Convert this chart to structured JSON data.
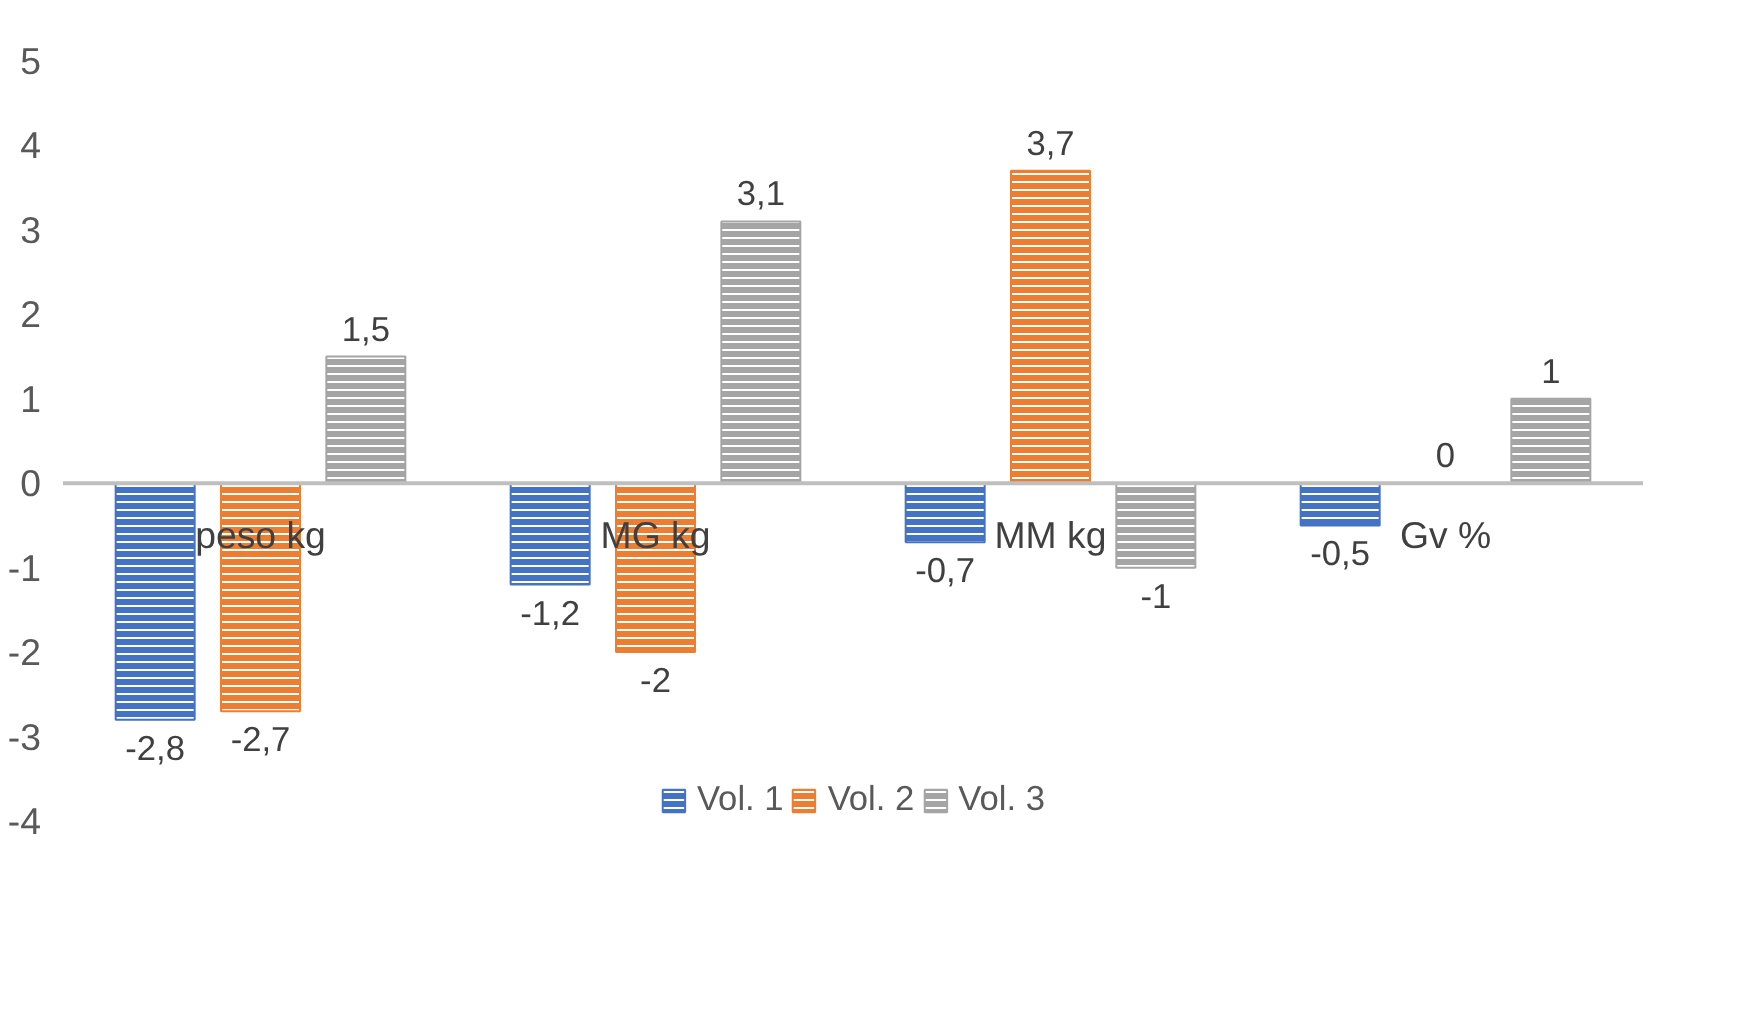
{
  "chart_data": {
    "type": "bar",
    "categories": [
      "peso kg",
      "MG kg",
      "MM kg",
      "Gv %"
    ],
    "series": [
      {
        "name": "Vol. 1",
        "color": "#4472c4",
        "values": [
          -2.8,
          -1.2,
          -0.7,
          -0.5
        ],
        "value_labels": [
          "-2,8",
          "-1,2",
          "-0,7",
          "-0,5"
        ]
      },
      {
        "name": "Vol. 2",
        "color": "#ed7d31",
        "values": [
          -2.7,
          -2,
          3.7,
          0
        ],
        "value_labels": [
          "-2,7",
          "-2",
          "3,7",
          "0"
        ]
      },
      {
        "name": "Vol. 3",
        "color": "#a5a5a5",
        "values": [
          1.5,
          3.1,
          -1,
          1
        ],
        "value_labels": [
          "1,5",
          "3,1",
          "-1",
          "1"
        ]
      }
    ],
    "ylim": [
      -4,
      5
    ],
    "yticks": [
      -4,
      -3,
      -2,
      -1,
      0,
      1,
      2,
      3,
      4,
      5
    ],
    "grid": false,
    "legend": "bottom"
  }
}
